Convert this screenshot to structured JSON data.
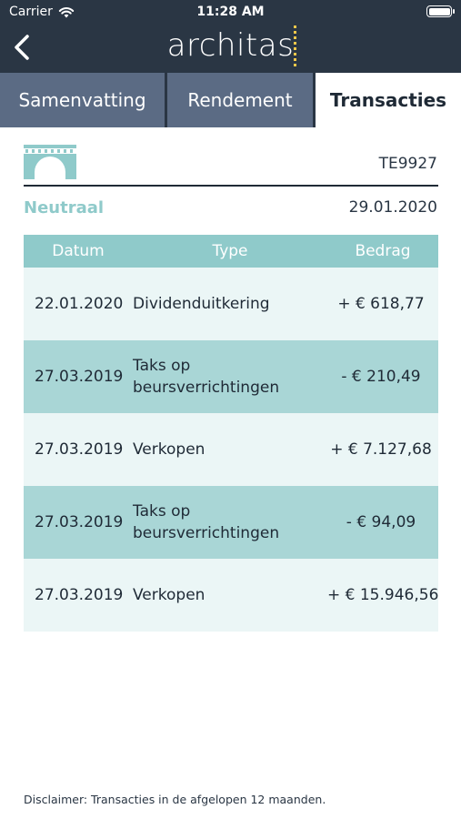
{
  "status_bar": {
    "carrier": "Carrier",
    "time": "11:28 AM"
  },
  "header": {
    "logo_text": "architas"
  },
  "tabs": [
    {
      "label": "Samenvatting",
      "active": false
    },
    {
      "label": "Rendement",
      "active": false
    },
    {
      "label": "Transacties",
      "active": true
    }
  ],
  "account": {
    "code": "TE9927",
    "profile": "Neutraal",
    "date": "29.01.2020",
    "icon": "bridge-icon"
  },
  "table": {
    "headers": [
      "Datum",
      "Type",
      "Bedrag"
    ],
    "rows": [
      {
        "date": "22.01.2020",
        "type": "Dividenduitkering",
        "amount": "+ € 618,77"
      },
      {
        "date": "27.03.2019",
        "type": "Taks op beursverrichtingen",
        "amount": "- € 210,49"
      },
      {
        "date": "27.03.2019",
        "type": "Verkopen",
        "amount": "+ € 7.127,68"
      },
      {
        "date": "27.03.2019",
        "type": "Taks op beursverrichtingen",
        "amount": "- € 94,09"
      },
      {
        "date": "27.03.2019",
        "type": "Verkopen",
        "amount": "+ € 15.946,56"
      }
    ]
  },
  "disclaimer": "Disclaimer: Transacties in de afgelopen 12 maanden.",
  "colors": {
    "header_bg": "#2a3644",
    "tab_inactive": "#5b6b84",
    "accent_teal": "#8fcaca",
    "row_light": "#ebf6f6",
    "row_dark": "#a9d6d6",
    "logo_mark": "#f2c84b"
  }
}
